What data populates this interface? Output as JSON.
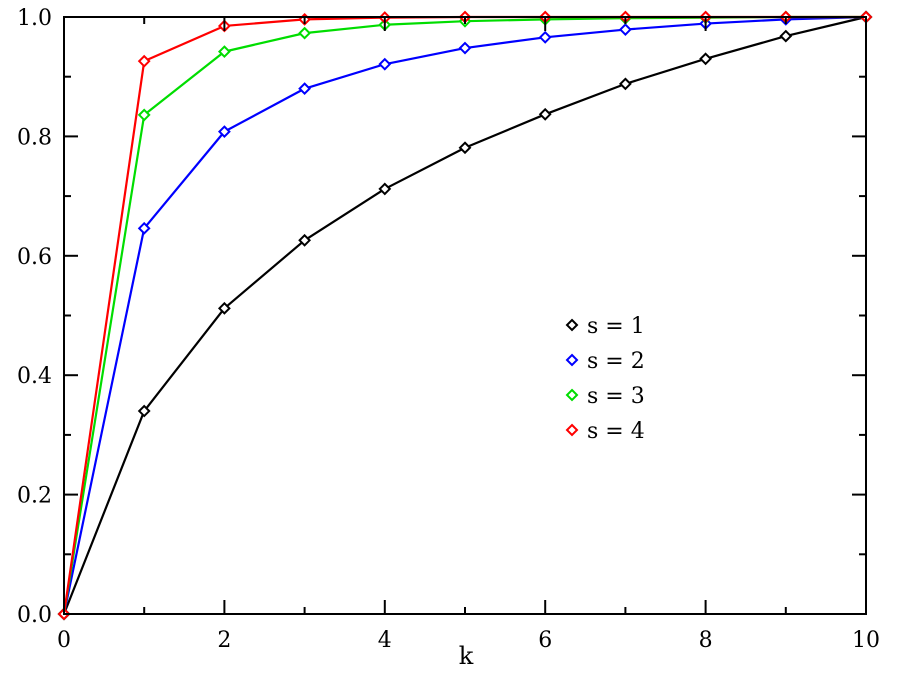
{
  "chart_data": {
    "type": "line",
    "xlabel": "k",
    "ylabel": "",
    "xlim": [
      0,
      10
    ],
    "ylim": [
      0,
      1
    ],
    "grid": false,
    "legend_position": "right-middle",
    "x_ticks": [
      0,
      2,
      4,
      6,
      8,
      10
    ],
    "x_tick_labels": [
      "0",
      "2",
      "4",
      "6",
      "8",
      "10"
    ],
    "y_ticks": [
      0,
      0.2,
      0.4,
      0.6,
      0.8,
      1.0
    ],
    "y_tick_labels": [
      "0.0",
      "0.2",
      "0.4",
      "0.6",
      "0.8",
      "1.0"
    ],
    "x": [
      0,
      1,
      2,
      3,
      4,
      5,
      6,
      7,
      8,
      9,
      10
    ],
    "series": [
      {
        "name": "s = 1",
        "color": "#000000",
        "marker": "diamond",
        "values": [
          0.0,
          0.34,
          0.512,
          0.626,
          0.712,
          0.781,
          0.837,
          0.888,
          0.93,
          0.968,
          1.0
        ]
      },
      {
        "name": "s = 2",
        "color": "#0000ff",
        "marker": "diamond",
        "values": [
          0.0,
          0.646,
          0.808,
          0.88,
          0.921,
          0.948,
          0.966,
          0.979,
          0.989,
          0.996,
          1.0
        ]
      },
      {
        "name": "s = 3",
        "color": "#00dd00",
        "marker": "diamond",
        "values": [
          0.0,
          0.836,
          0.942,
          0.973,
          0.987,
          0.993,
          0.996,
          0.998,
          0.999,
          1.0,
          1.0
        ]
      },
      {
        "name": "s = 4",
        "color": "#ff0000",
        "marker": "diamond",
        "values": [
          0.0,
          0.926,
          0.985,
          0.996,
          0.999,
          1.0,
          1.0,
          1.0,
          1.0,
          1.0,
          1.0
        ]
      }
    ]
  }
}
